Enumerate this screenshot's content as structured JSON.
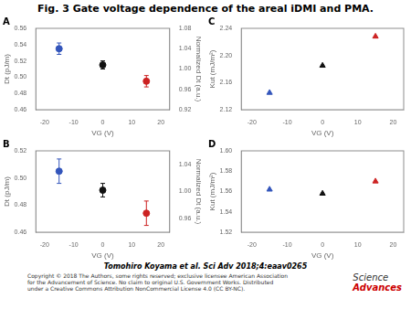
{
  "title": "Fig. 3 Gate voltage dependence of the areal iDMI and PMA.",
  "footer_author": "Tomohiro Koyama et al. Sci Adv 2018;4:eaav0265",
  "footer_copyright": "Copyright © 2018 The Authors, some rights reserved; exclusive licensee American Association\nfor the Advancement of Science. No claim to original U.S. Government Works. Distributed\nunder a Creative Commons Attribution NonCommercial License 4.0 (CC BY-NC).",
  "logo": [
    {
      "text": "Science",
      "color": "#333333"
    },
    {
      "text": "Advances",
      "color": "#cc0000"
    }
  ],
  "chart_data": [
    {
      "type": "scatter",
      "panel_label": "A",
      "marker": "circle",
      "grid": false,
      "x": [
        -15,
        0,
        15
      ],
      "values": [
        0.535,
        0.515,
        0.495
      ],
      "errors": [
        0.007,
        0.005,
        0.007
      ],
      "colors": [
        "#3355bb",
        "#111111",
        "#cc2222"
      ],
      "xlabel": "VG (V)",
      "ylabel": "Dt (pJ/m)",
      "y2label": "Normalized Dt (a.u.)",
      "xlim": [
        -23,
        23
      ],
      "xticks": [
        -20,
        -10,
        0,
        10,
        20
      ],
      "ylim": [
        0.46,
        0.56
      ],
      "yticks": [
        0.46,
        0.48,
        {
          "value": 0.5,
          "label": "0.50"
        },
        0.52,
        0.54,
        0.56
      ],
      "y2lim": [
        0.92,
        1.08
      ],
      "y2ticks": [
        0.92,
        0.96,
        {
          "value": 1,
          "label": "1.00"
        },
        1.04,
        1.08
      ]
    },
    {
      "type": "scatter",
      "panel_label": "B",
      "marker": "circle",
      "grid": false,
      "x": [
        -15,
        0,
        15
      ],
      "values": [
        0.505,
        0.491,
        0.474
      ],
      "errors": [
        0.009,
        0.005,
        0.009
      ],
      "colors": [
        "#3355bb",
        "#111111",
        "#cc2222"
      ],
      "xlabel": "VG (V)",
      "ylabel": "Dt (pJ/m)",
      "y2label": "Normalized Dt (a.u.)",
      "xlim": [
        -23,
        23
      ],
      "xticks": [
        -20,
        -10,
        0,
        10,
        20
      ],
      "ylim": [
        0.46,
        0.52
      ],
      "yticks": [
        0.46,
        0.48,
        {
          "value": 0.5,
          "label": "0.50"
        },
        0.52
      ],
      "y2lim": [
        0.94,
        1.06
      ],
      "y2ticks": [
        0.96,
        {
          "value": 1,
          "label": "1.00"
        },
        1.04
      ]
    },
    {
      "type": "scatter",
      "panel_label": "C",
      "marker": "triangle",
      "grid": false,
      "x": [
        -15,
        0,
        15
      ],
      "values": [
        2.145,
        2.185,
        2.228
      ],
      "colors": [
        "#3355bb",
        "#111111",
        "#cc2222"
      ],
      "xlabel": "VG (V)",
      "ylabel": "Kut (mJ/m²)",
      "xlim": [
        -23,
        23
      ],
      "xticks": [
        -20,
        -10,
        0,
        10,
        20
      ],
      "ylim": [
        2.12,
        2.24
      ],
      "yticks": [
        2.12,
        2.16,
        {
          "value": 2.2,
          "label": "2.20"
        },
        2.24
      ]
    },
    {
      "type": "scatter",
      "panel_label": "D",
      "marker": "triangle",
      "grid": false,
      "x": [
        -15,
        0,
        15
      ],
      "values": [
        1.562,
        1.558,
        1.57
      ],
      "colors": [
        "#3355bb",
        "#111111",
        "#cc2222"
      ],
      "xlabel": "VG (V)",
      "ylabel": "Kut (mJ/m²)",
      "xlim": [
        -23,
        23
      ],
      "xticks": [
        -20,
        -10,
        0,
        10,
        20
      ],
      "ylim": [
        1.52,
        1.6
      ],
      "yticks": [
        1.52,
        1.54,
        1.56,
        1.58,
        {
          "value": 1.6,
          "label": "1.60"
        }
      ]
    }
  ]
}
